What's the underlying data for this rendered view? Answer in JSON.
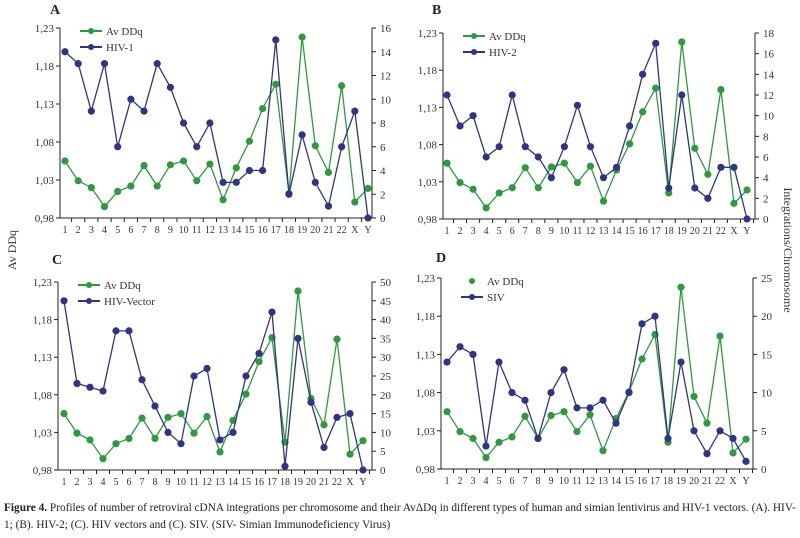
{
  "caption": {
    "label": "Figure 4.",
    "text": " Profiles of number of retroviral cDNA integrations per chromosome and their AvΔDq in different types of human and simian lentivirus and HIV-1 vectors. (A). HIV-1; (B). HIV-2; (C). HIV vectors and (C). SIV. (SIV- Simian Immunodeficiency Virus)"
  },
  "shared_axes": {
    "left_title": "Av DDq",
    "right_title": "Integrations/Chromosome"
  },
  "colors": {
    "avddq": "#2e9a3e",
    "integrations": "#2e3585"
  },
  "chart_data": [
    {
      "type": "line",
      "panel": "A",
      "categories": [
        "1",
        "2",
        "3",
        "4",
        "5",
        "6",
        "7",
        "8",
        "9",
        "10",
        "11",
        "12",
        "13",
        "14",
        "15",
        "16",
        "17",
        "18",
        "19",
        "20",
        "21",
        "22",
        "X",
        "Y"
      ],
      "ylim_left": [
        0.98,
        1.23
      ],
      "yticks_left": [
        "1,23",
        "1,18",
        "1,13",
        "1,08",
        "1,03",
        "0,98"
      ],
      "ylim_right": [
        0,
        16
      ],
      "yticks_right": [
        "16",
        "14",
        "12",
        "10",
        "8",
        "6",
        "4",
        "2",
        "0"
      ],
      "legend_placement": "top-left",
      "series": [
        {
          "name": "Av DDq",
          "axis": "left",
          "values": [
            1.055,
            1.029,
            1.02,
            0.995,
            1.015,
            1.022,
            1.049,
            1.022,
            1.05,
            1.055,
            1.029,
            1.051,
            1.004,
            1.046,
            1.081,
            1.124,
            1.156,
            1.012,
            1.218,
            1.075,
            1.04,
            1.154,
            1.001,
            1.019
          ]
        },
        {
          "name": "HIV-1",
          "axis": "right",
          "values": [
            14,
            13,
            9,
            13,
            6,
            10,
            9,
            13,
            11,
            8,
            6,
            8,
            3,
            3,
            4,
            4,
            15,
            2,
            7,
            3,
            1,
            6,
            9,
            0
          ]
        }
      ]
    },
    {
      "type": "line",
      "panel": "B",
      "categories": [
        "1",
        "2",
        "3",
        "4",
        "5",
        "6",
        "7",
        "8",
        "9",
        "10",
        "11",
        "12",
        "13",
        "14",
        "15",
        "16",
        "17",
        "18",
        "19",
        "20",
        "21",
        "22",
        "X",
        "Y"
      ],
      "ylim_left": [
        0.98,
        1.23
      ],
      "yticks_left": [
        "1,23",
        "1,18",
        "1,13",
        "1,08",
        "1,03",
        "0,98"
      ],
      "ylim_right": [
        0,
        18
      ],
      "yticks_right": [
        "18",
        "16",
        "14",
        "12",
        "10",
        "8",
        "6",
        "4",
        "2",
        "0"
      ],
      "legend_placement": "top-left",
      "series": [
        {
          "name": "Av DDq",
          "axis": "left",
          "values": [
            1.055,
            1.029,
            1.02,
            0.995,
            1.015,
            1.022,
            1.049,
            1.022,
            1.05,
            1.055,
            1.029,
            1.051,
            1.004,
            1.046,
            1.081,
            1.124,
            1.156,
            1.015,
            1.218,
            1.075,
            1.04,
            1.154,
            1.001,
            1.019
          ]
        },
        {
          "name": "HIV-2",
          "axis": "right",
          "values": [
            12,
            9,
            10,
            6,
            7,
            12,
            7,
            6,
            4,
            7,
            11,
            7,
            4,
            5,
            9,
            14,
            17,
            3,
            12,
            3,
            2,
            5,
            5,
            0
          ]
        }
      ]
    },
    {
      "type": "line",
      "panel": "C",
      "categories": [
        "1",
        "2",
        "3",
        "4",
        "5",
        "6",
        "7",
        "8",
        "9",
        "10",
        "11",
        "12",
        "13",
        "14",
        "15",
        "16",
        "17",
        "18",
        "19",
        "20",
        "21",
        "22",
        "X",
        "Y"
      ],
      "ylim_left": [
        0.98,
        1.23
      ],
      "yticks_left": [
        "1,23",
        "1,18",
        "1,13",
        "1,08",
        "1,03",
        "0,98"
      ],
      "ylim_right": [
        0,
        50
      ],
      "yticks_right": [
        "50",
        "45",
        "40",
        "35",
        "30",
        "25",
        "20",
        "15",
        "10",
        "5",
        "0"
      ],
      "legend_placement": "top-left",
      "series": [
        {
          "name": "Av DDq",
          "axis": "left",
          "values": [
            1.055,
            1.029,
            1.02,
            0.995,
            1.015,
            1.022,
            1.049,
            1.022,
            1.05,
            1.055,
            1.029,
            1.051,
            1.004,
            1.046,
            1.081,
            1.124,
            1.156,
            1.017,
            1.218,
            1.075,
            1.04,
            1.154,
            1.001,
            1.019
          ]
        },
        {
          "name": "HIV-Vector",
          "axis": "right",
          "values": [
            45,
            23,
            22,
            21,
            37,
            37,
            24,
            17,
            10,
            7,
            25,
            27,
            8,
            10,
            25,
            31,
            42,
            1,
            35,
            18,
            6,
            14,
            15,
            0
          ]
        }
      ]
    },
    {
      "type": "line",
      "panel": "D",
      "categories": [
        "1",
        "2",
        "3",
        "4",
        "5",
        "6",
        "7",
        "8",
        "9",
        "10",
        "11",
        "12",
        "13",
        "14",
        "15",
        "16",
        "17",
        "18",
        "19",
        "20",
        "21",
        "22",
        "X",
        "Y"
      ],
      "ylim_left": [
        0.98,
        1.23
      ],
      "yticks_left": [
        "1,23",
        "1,18",
        "1,13",
        "1,08",
        "1,03",
        "0,98"
      ],
      "ylim_right": [
        0,
        25
      ],
      "yticks_right": [
        "25",
        "20",
        "15",
        "10",
        "5",
        "0"
      ],
      "legend_placement": "top-left",
      "series": [
        {
          "name": "Av DDq",
          "axis": "left",
          "values": [
            1.055,
            1.029,
            1.02,
            0.995,
            1.015,
            1.022,
            1.049,
            1.02,
            1.05,
            1.055,
            1.029,
            1.051,
            1.004,
            1.046,
            1.081,
            1.124,
            1.156,
            1.015,
            1.218,
            1.075,
            1.04,
            1.154,
            1.001,
            1.019
          ]
        },
        {
          "name": "SIV",
          "axis": "right",
          "values": [
            14,
            16,
            15,
            3,
            14,
            10,
            9,
            4,
            10,
            13,
            8,
            8,
            9,
            6,
            10,
            19,
            20,
            4,
            14,
            5,
            2,
            5,
            4,
            1
          ]
        }
      ]
    }
  ]
}
